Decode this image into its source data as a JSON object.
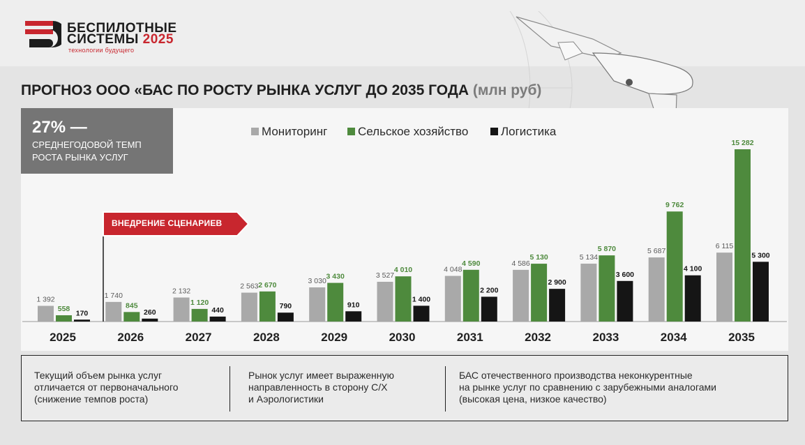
{
  "header": {
    "logo_line1": "БЕСПИЛОТНЫЕ",
    "logo_line2": "СИСТЕМЫ",
    "logo_year": "2025",
    "logo_tagline": "технологии будущего"
  },
  "title": {
    "main": "ПРОГНОЗ ООО «БАС ПО РОСТУ РЫНКА УСЛУГ ДО 2035 ГОДА",
    "unit": "(млн руб)"
  },
  "kpi": {
    "value": "27% —",
    "line1": "СРЕДНЕГОДОВОЙ ТЕМП",
    "line2": "РОСТА РЫНКА УСЛУГ"
  },
  "scenario_label": "ВНЕДРЕНИЕ СЦЕНАРИЕВ",
  "colors": {
    "monitoring": "#a9a9a9",
    "agriculture": "#4e8a3d",
    "logistics": "#151515",
    "accent_red": "#c8262e",
    "agri_label": "#4e8a3d"
  },
  "chart_data": {
    "type": "bar",
    "categories": [
      "2025",
      "2026",
      "2027",
      "2028",
      "2029",
      "2030",
      "2031",
      "2032",
      "2033",
      "2034",
      "2035"
    ],
    "series": [
      {
        "name": "Мониторинг",
        "values": [
          1392,
          1740,
          2132,
          2563,
          3030,
          3527,
          4048,
          4586,
          5134,
          5687,
          6115
        ],
        "labels": [
          "1 392",
          "1 740",
          "2 132",
          "2 563",
          "3 030",
          "3 527",
          "4 048",
          "4 586",
          "5 134",
          "5 687",
          "6 115"
        ]
      },
      {
        "name": "Сельское хозяйство",
        "values": [
          558,
          845,
          1120,
          2670,
          3430,
          4010,
          4590,
          5130,
          5870,
          9762,
          15282
        ],
        "labels": [
          "558",
          "845",
          "1 120",
          "2 670",
          "3 430",
          "4 010",
          "4 590",
          "5 130",
          "5 870",
          "9 762",
          "15 282"
        ]
      },
      {
        "name": "Логистика",
        "values": [
          170,
          260,
          440,
          790,
          910,
          1400,
          2200,
          2900,
          3600,
          4100,
          5300
        ],
        "labels": [
          "170",
          "260",
          "440",
          "790",
          "910",
          "1 400",
          "2 200",
          "2 900",
          "3 600",
          "4 100",
          "5 300"
        ]
      }
    ],
    "ylim": [
      0,
      15282
    ],
    "grid": false,
    "legend": "top"
  },
  "notes": [
    "Текущий объем рынка услуг\nотличается от первоначального\n(снижение темпов роста)",
    "Рынок услуг имеет выраженную\nнаправленность в сторону С/Х\nи Аэрологистики",
    "БАС отечественного производства неконкурентные\nна рынке услуг по сравнению с зарубежными аналогами\n(высокая цена, низкое качество)"
  ]
}
